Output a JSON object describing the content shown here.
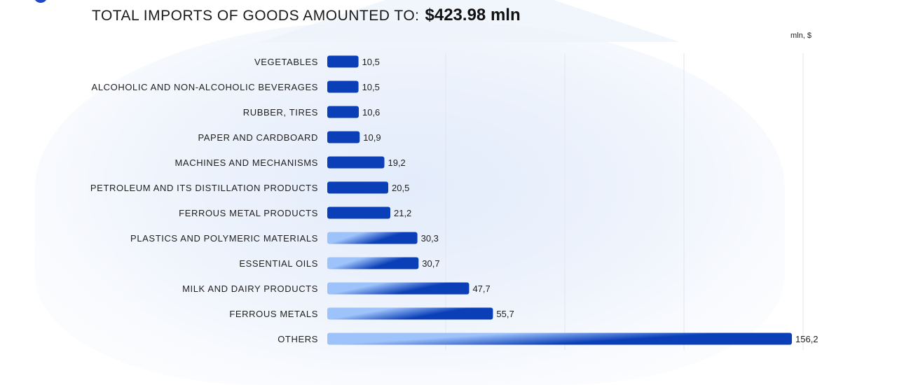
{
  "header": {
    "label": "TOTAL IMPORTS OF GOODS AMOUNTED TO:",
    "value": "$423.98 mln"
  },
  "unit": "mln, $",
  "colors": {
    "bar_dark": "#0b3fb8",
    "bar_light": "#9ec2fa",
    "grid": "#e2e6ee"
  },
  "chart_data": {
    "type": "bar",
    "orientation": "horizontal",
    "title": "TOTAL IMPORTS OF GOODS AMOUNTED TO: $423.98 mln",
    "unit": "mln, $",
    "categories": [
      "VEGETABLES",
      "ALCOHOLIC AND NON-ALCOHOLIC BEVERAGES",
      "RUBBER, TIRES",
      "PAPER AND CARDBOARD",
      "MACHINES AND MECHANISMS",
      "PETROLEUM AND ITS DISTILLATION PRODUCTS",
      "FERROUS METAL PRODUCTS",
      "PLASTICS AND POLYMERIC MATERIALS",
      "ESSENTIAL OILS",
      "MILK AND DAIRY PRODUCTS",
      "FERROUS METALS",
      "OTHERS"
    ],
    "values": [
      10.5,
      10.5,
      10.6,
      10.9,
      19.2,
      20.5,
      21.2,
      30.3,
      30.7,
      47.7,
      55.7,
      156.2
    ],
    "value_labels": [
      "10,5",
      "10,5",
      "10,6",
      "10,9",
      "19,2",
      "20,5",
      "21,2",
      "30,3",
      "30,7",
      "47,7",
      "55,7",
      "156,2"
    ],
    "xlim": [
      0,
      160
    ],
    "grid": true
  }
}
